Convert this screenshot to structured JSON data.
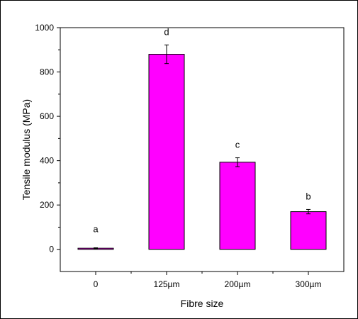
{
  "chart_data": {
    "type": "bar",
    "xlabel": "Fibre size",
    "ylabel": "Tensile modulus (MPa)",
    "categories": [
      "0",
      "125µm",
      "200µm",
      "300µm"
    ],
    "values": [
      5,
      880,
      393,
      170
    ],
    "errors": [
      2,
      42,
      20,
      10
    ],
    "letters": [
      "a",
      "d",
      "c",
      "b"
    ],
    "ylim": [
      -100,
      1000
    ],
    "yticks": [
      0,
      200,
      400,
      600,
      800,
      1000
    ],
    "bar_color": "#ff00ff",
    "grid": false,
    "legend": "none"
  }
}
